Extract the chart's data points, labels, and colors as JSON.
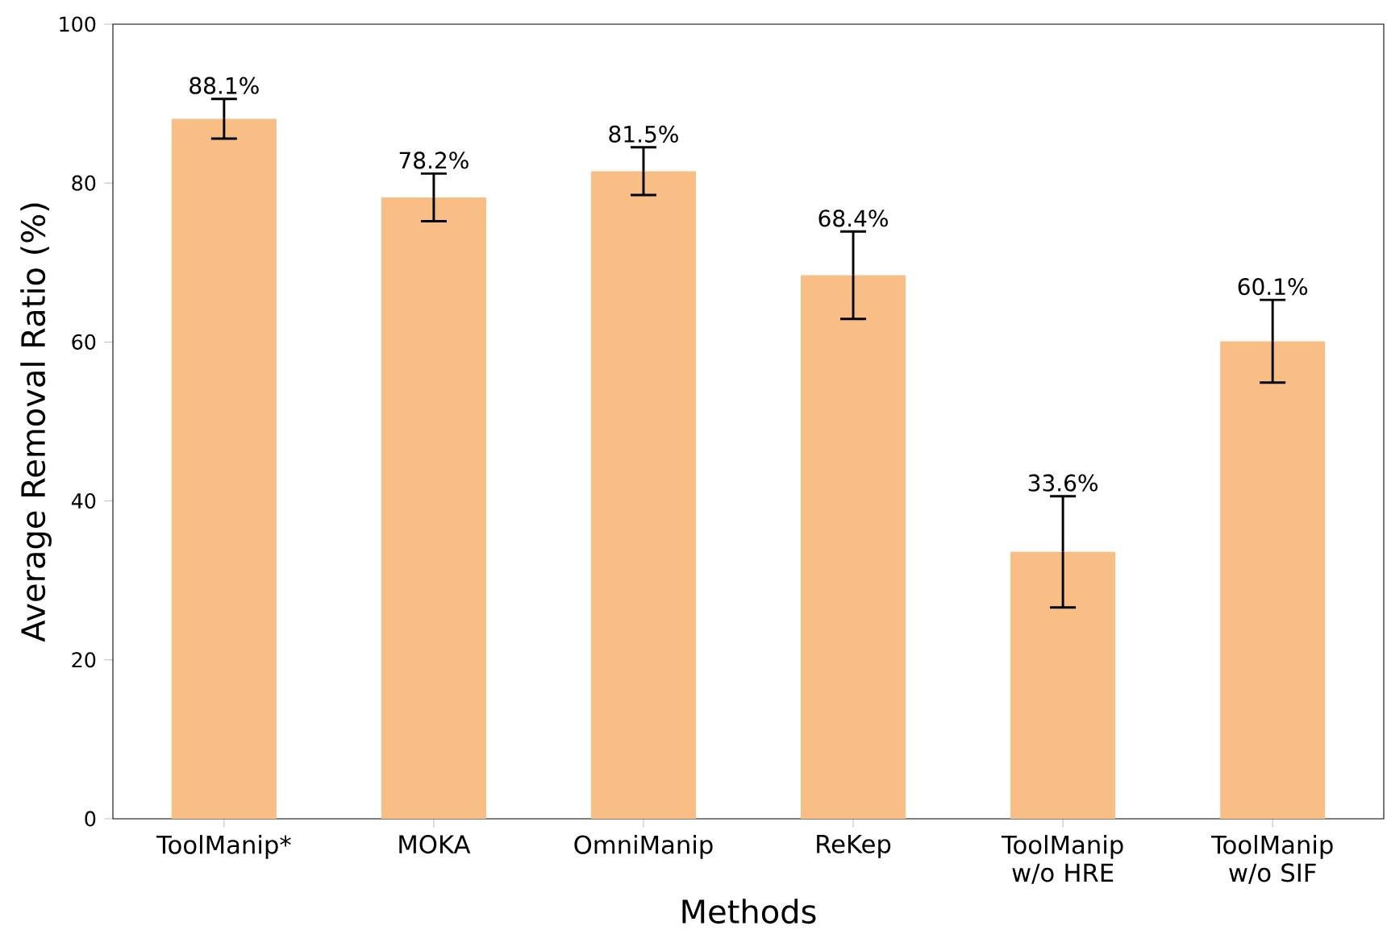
{
  "chart_data": {
    "type": "bar",
    "xlabel": "Methods",
    "ylabel": "Average Removal Ratio (%)",
    "categories": [
      "ToolManip*",
      "MOKA",
      "OmniManip",
      "ReKep",
      "ToolManip w/o HRE",
      "ToolManip w/o SIF"
    ],
    "values": [
      88.1,
      78.2,
      81.5,
      68.4,
      33.6,
      60.1
    ],
    "errors": [
      2.5,
      3.0,
      3.0,
      5.5,
      7.0,
      5.2
    ],
    "value_labels": [
      "88.1%",
      "78.2%",
      "81.5%",
      "68.4%",
      "33.6%",
      "60.1%"
    ],
    "color": "#f9be86",
    "ylim": [
      0,
      100
    ],
    "yticks": [
      0,
      20,
      40,
      60,
      80,
      100
    ],
    "grid": false
  }
}
